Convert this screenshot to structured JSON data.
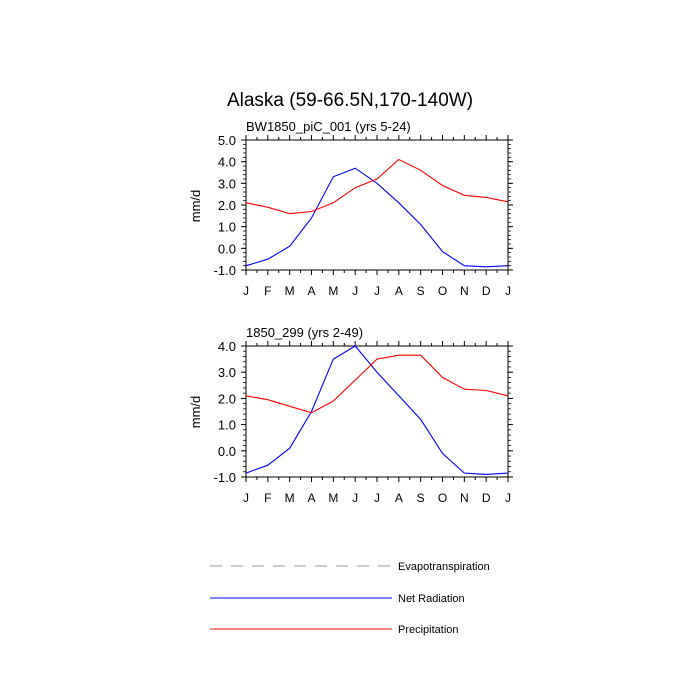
{
  "figure": {
    "title": "Alaska (59-66.5N,170-140W)"
  },
  "chart_data": [
    {
      "type": "line",
      "subtitle": "BW1850_piC_001 (yrs 5-24)",
      "ylabel": "mm/d",
      "x": [
        "J",
        "F",
        "M",
        "A",
        "M",
        "J",
        "J",
        "A",
        "S",
        "O",
        "N",
        "D",
        "J"
      ],
      "ylim": [
        -1.0,
        5.0
      ],
      "yticks": [
        "5.0",
        "4.0",
        "3.0",
        "2.0",
        "1.0",
        "0.0",
        "-1.0"
      ],
      "series": [
        {
          "name": "Net Radiation",
          "color": "#0000ff",
          "values": [
            -0.8,
            -0.5,
            0.1,
            1.4,
            3.3,
            3.7,
            3.0,
            2.1,
            1.1,
            -0.15,
            -0.8,
            -0.85,
            -0.8
          ]
        },
        {
          "name": "Precipitation",
          "color": "#ff0000",
          "values": [
            2.1,
            1.9,
            1.6,
            1.7,
            2.1,
            2.8,
            3.2,
            4.1,
            3.6,
            2.9,
            2.45,
            2.35,
            2.15
          ]
        }
      ]
    },
    {
      "type": "line",
      "subtitle": "1850_299 (yrs 2-49)",
      "ylabel": "mm/d",
      "x": [
        "J",
        "F",
        "M",
        "A",
        "M",
        "J",
        "J",
        "A",
        "S",
        "O",
        "N",
        "D",
        "J"
      ],
      "ylim": [
        -1.0,
        4.0
      ],
      "yticks": [
        "4.0",
        "3.0",
        "2.0",
        "1.0",
        "0.0",
        "-1.0"
      ],
      "series": [
        {
          "name": "Net Radiation",
          "color": "#0000ff",
          "values": [
            -0.85,
            -0.55,
            0.1,
            1.5,
            3.5,
            4.0,
            3.0,
            2.1,
            1.2,
            -0.1,
            -0.85,
            -0.9,
            -0.85
          ]
        },
        {
          "name": "Precipitation",
          "color": "#ff0000",
          "values": [
            2.1,
            1.95,
            1.7,
            1.45,
            1.9,
            2.7,
            3.5,
            3.65,
            3.65,
            2.8,
            2.35,
            2.3,
            2.1
          ]
        }
      ]
    }
  ],
  "legend": [
    {
      "label": "Evapotranspiration",
      "color": "#999999",
      "style": "dashed"
    },
    {
      "label": "Net Radiation",
      "color": "#0000ff",
      "style": "solid"
    },
    {
      "label": "Precipitation",
      "color": "#ff0000",
      "style": "solid"
    }
  ]
}
